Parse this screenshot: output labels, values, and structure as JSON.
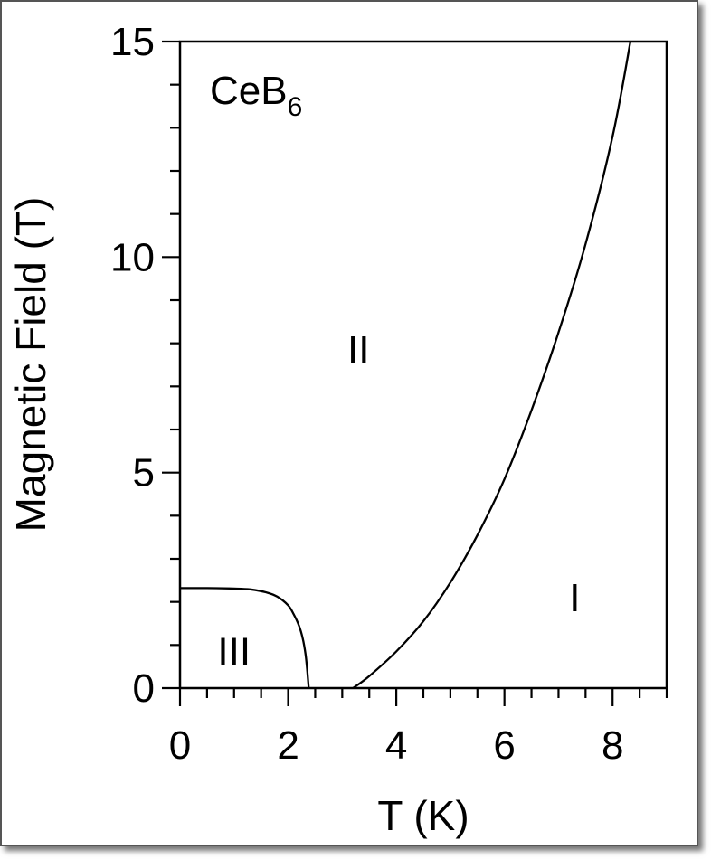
{
  "chart_data": {
    "type": "line",
    "title": "",
    "xlabel": "T  (K)",
    "ylabel": "Magnetic Field  (T)",
    "xlim": [
      0,
      9
    ],
    "ylim": [
      0,
      15
    ],
    "x_ticks": [
      0,
      2,
      4,
      6,
      8
    ],
    "y_ticks": [
      0,
      5,
      10,
      15
    ],
    "x_minor_step": 0.5,
    "y_minor_step": 1,
    "grid": false,
    "compound": {
      "base": "CeB",
      "subscript": "6"
    },
    "regions": [
      {
        "label": "III",
        "x": 1.0,
        "y": 0.85
      },
      {
        "label": "II",
        "x": 3.3,
        "y": 7.85
      },
      {
        "label": "I",
        "x": 7.3,
        "y": 2.1
      }
    ],
    "series": [
      {
        "x": [
          0.0,
          0.5,
          1.0,
          1.3,
          1.6,
          1.8,
          2.0,
          2.1,
          2.2,
          2.27,
          2.32,
          2.35,
          2.37,
          2.38
        ],
        "y": [
          2.32,
          2.32,
          2.31,
          2.29,
          2.22,
          2.12,
          1.92,
          1.72,
          1.45,
          1.15,
          0.8,
          0.45,
          0.15,
          0.0
        ],
        "color": "#000000"
      },
      {
        "x": [
          3.2,
          3.5,
          4.0,
          4.5,
          5.0,
          5.5,
          6.0,
          6.5,
          7.0,
          7.5,
          8.0,
          8.33
        ],
        "y": [
          0.0,
          0.28,
          0.85,
          1.55,
          2.45,
          3.55,
          4.85,
          6.45,
          8.25,
          10.3,
          12.8,
          15.0
        ],
        "color": "#000000"
      }
    ]
  }
}
